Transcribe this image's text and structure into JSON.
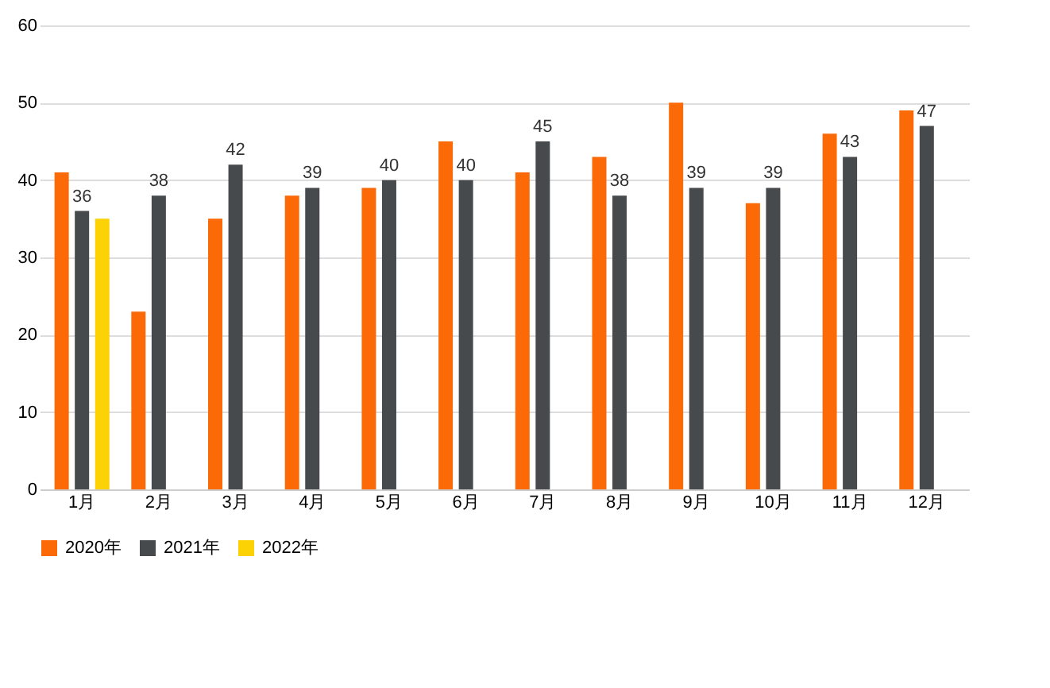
{
  "chart_data": {
    "type": "bar",
    "categories": [
      "1月",
      "2月",
      "3月",
      "4月",
      "5月",
      "6月",
      "7月",
      "8月",
      "9月",
      "10月",
      "11月",
      "12月"
    ],
    "series": [
      {
        "name": "2020年",
        "color": "#fb6a06",
        "values": [
          41,
          23,
          35,
          38,
          39,
          45,
          41,
          43,
          50,
          37,
          46,
          49
        ]
      },
      {
        "name": "2021年",
        "color": "#464a4c",
        "values": [
          36,
          38,
          42,
          39,
          40,
          40,
          45,
          38,
          39,
          39,
          43,
          47
        ],
        "value_labels": [
          "36",
          "38",
          "42",
          "39",
          "40",
          "40",
          "45",
          "38",
          "39",
          "39",
          "43",
          "47"
        ]
      },
      {
        "name": "2022年",
        "color": "#fcd205",
        "values": [
          35,
          null,
          null,
          null,
          null,
          null,
          null,
          null,
          null,
          null,
          null,
          null
        ]
      }
    ],
    "ylim": [
      0,
      60
    ],
    "yticks": [
      0,
      10,
      20,
      30,
      40,
      50,
      60
    ],
    "grid": "y",
    "legend": "bottom"
  }
}
